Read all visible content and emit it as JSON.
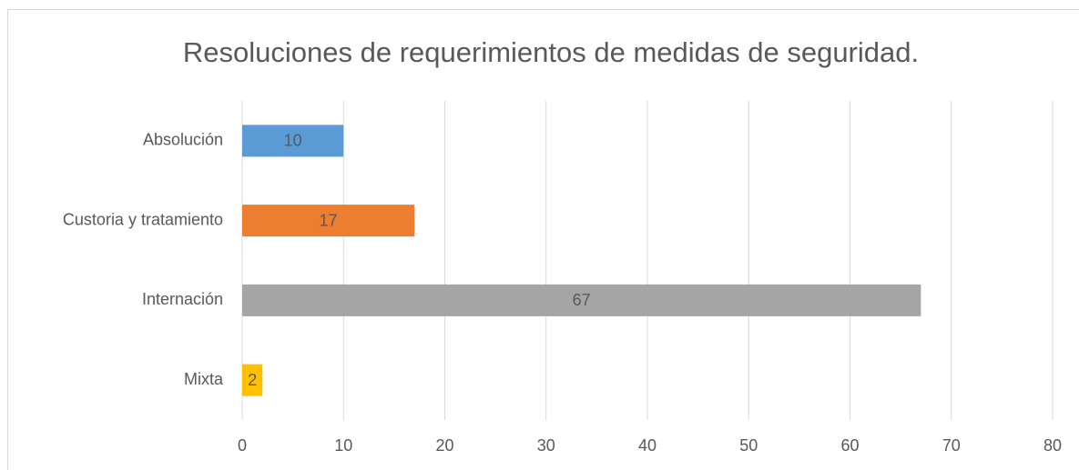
{
  "chart_data": {
    "type": "hbar",
    "title": "Resoluciones de requerimientos de medidas de seguridad.",
    "categories": [
      "Absolución",
      "Custoria y tratamiento",
      "Internación",
      "Mixta"
    ],
    "values": [
      10,
      17,
      67,
      2
    ],
    "colors": [
      "#5b9bd5",
      "#ed7d31",
      "#a5a5a5",
      "#ffc000"
    ],
    "xlim": [
      0,
      80
    ],
    "xticks": [
      0,
      10,
      20,
      30,
      40,
      50,
      60,
      70,
      80
    ],
    "grid": true
  }
}
